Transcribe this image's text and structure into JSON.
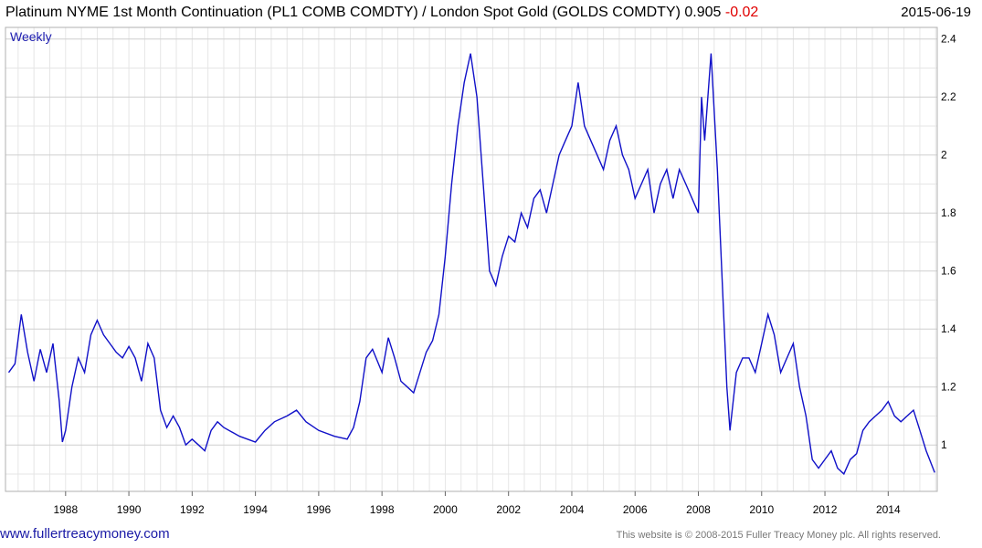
{
  "header": {
    "title_main": "Platinum NYME 1st Month Continuation (PL1 COMB COMDTY) / London Spot Gold (GOLDS COMDTY) 0.905",
    "title_change": "-0.02",
    "date": "2015-06-19"
  },
  "footer": {
    "site": "www.fullertreacymoney.com",
    "copyright": "This website is © 2008-2015 Fuller Treacy Money plc. All rights reserved."
  },
  "colors": {
    "line": "#1010c8",
    "negative": "#e00000",
    "grid": "#d9d9d9"
  },
  "chart_data": {
    "type": "line",
    "frequency_label": "Weekly",
    "xlim": [
      1986.1,
      2015.55
    ],
    "ylim": [
      0.84,
      2.44
    ],
    "x_ticks": [
      "1988",
      "1990",
      "1992",
      "1994",
      "1996",
      "1998",
      "2000",
      "2002",
      "2004",
      "2006",
      "2008",
      "2010",
      "2012",
      "2014"
    ],
    "y_ticks": [
      "1",
      "1.2",
      "1.4",
      "1.6",
      "1.8",
      "2",
      "2.2",
      "2.4"
    ],
    "grid": true,
    "series": [
      {
        "x": [
          1986.2,
          1986.4,
          1986.6,
          1986.8,
          1987.0,
          1987.2,
          1987.4,
          1987.6,
          1987.8,
          1987.9,
          1988.0,
          1988.2,
          1988.4,
          1988.6,
          1988.8,
          1989.0,
          1989.2,
          1989.4,
          1989.6,
          1989.8,
          1990.0,
          1990.2,
          1990.4,
          1990.6,
          1990.8,
          1991.0,
          1991.2,
          1991.4,
          1991.6,
          1991.8,
          1992.0,
          1992.2,
          1992.4,
          1992.6,
          1992.8,
          1993.0,
          1993.5,
          1994.0,
          1994.3,
          1994.6,
          1995.0,
          1995.3,
          1995.6,
          1996.0,
          1996.5,
          1996.9,
          1997.1,
          1997.3,
          1997.5,
          1997.7,
          1998.0,
          1998.2,
          1998.4,
          1998.6,
          1998.8,
          1999.0,
          1999.2,
          1999.4,
          1999.6,
          1999.8,
          2000.0,
          2000.2,
          2000.4,
          2000.6,
          2000.8,
          2001.0,
          2001.2,
          2001.4,
          2001.6,
          2001.8,
          2002.0,
          2002.2,
          2002.4,
          2002.6,
          2002.8,
          2003.0,
          2003.2,
          2003.4,
          2003.6,
          2003.8,
          2004.0,
          2004.2,
          2004.4,
          2004.6,
          2004.8,
          2005.0,
          2005.2,
          2005.4,
          2005.6,
          2005.8,
          2006.0,
          2006.2,
          2006.4,
          2006.6,
          2006.8,
          2007.0,
          2007.2,
          2007.4,
          2007.6,
          2007.8,
          2008.0,
          2008.1,
          2008.2,
          2008.4,
          2008.6,
          2008.8,
          2008.9,
          2009.0,
          2009.2,
          2009.4,
          2009.6,
          2009.8,
          2010.0,
          2010.2,
          2010.4,
          2010.6,
          2010.8,
          2011.0,
          2011.2,
          2011.4,
          2011.6,
          2011.8,
          2012.0,
          2012.2,
          2012.4,
          2012.6,
          2012.8,
          2013.0,
          2013.2,
          2013.4,
          2013.6,
          2013.8,
          2014.0,
          2014.2,
          2014.4,
          2014.6,
          2014.8,
          2015.0,
          2015.2,
          2015.47
        ],
        "y": [
          1.25,
          1.28,
          1.45,
          1.32,
          1.22,
          1.33,
          1.25,
          1.35,
          1.15,
          1.01,
          1.05,
          1.2,
          1.3,
          1.25,
          1.38,
          1.43,
          1.38,
          1.35,
          1.32,
          1.3,
          1.34,
          1.3,
          1.22,
          1.35,
          1.3,
          1.12,
          1.06,
          1.1,
          1.06,
          1.0,
          1.02,
          1.0,
          0.98,
          1.05,
          1.08,
          1.06,
          1.03,
          1.01,
          1.05,
          1.08,
          1.1,
          1.12,
          1.08,
          1.05,
          1.03,
          1.02,
          1.06,
          1.15,
          1.3,
          1.33,
          1.25,
          1.37,
          1.3,
          1.22,
          1.2,
          1.18,
          1.25,
          1.32,
          1.36,
          1.45,
          1.65,
          1.9,
          2.1,
          2.25,
          2.35,
          2.2,
          1.9,
          1.6,
          1.55,
          1.65,
          1.72,
          1.7,
          1.8,
          1.75,
          1.85,
          1.88,
          1.8,
          1.9,
          2.0,
          2.05,
          2.1,
          2.25,
          2.1,
          2.05,
          2.0,
          1.95,
          2.05,
          2.1,
          2.0,
          1.95,
          1.85,
          1.9,
          1.95,
          1.8,
          1.9,
          1.95,
          1.85,
          1.95,
          1.9,
          1.85,
          1.8,
          2.2,
          2.05,
          2.35,
          1.95,
          1.45,
          1.2,
          1.05,
          1.25,
          1.3,
          1.3,
          1.25,
          1.35,
          1.45,
          1.38,
          1.25,
          1.3,
          1.35,
          1.2,
          1.1,
          0.95,
          0.92,
          0.95,
          0.98,
          0.92,
          0.9,
          0.95,
          0.97,
          1.05,
          1.08,
          1.1,
          1.12,
          1.15,
          1.1,
          1.08,
          1.1,
          1.12,
          1.05,
          0.98,
          0.905
        ]
      }
    ]
  }
}
